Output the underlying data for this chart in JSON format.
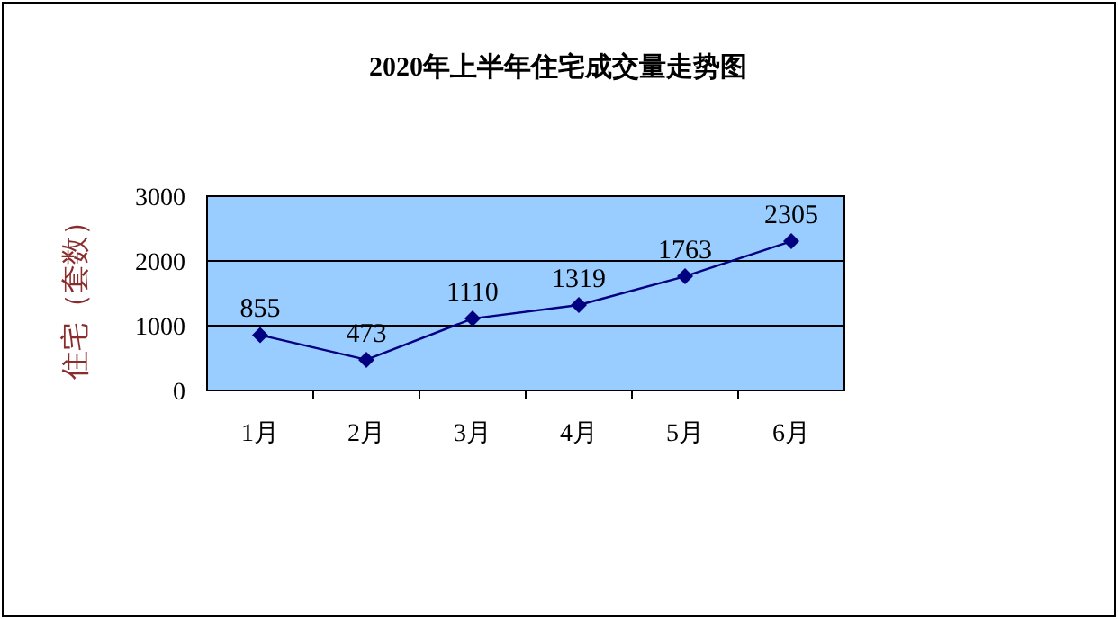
{
  "chart_data": {
    "type": "line",
    "title": "2020年上半年住宅成交量走势图",
    "ylabel": "住宅（套数）",
    "categories": [
      "1月",
      "2月",
      "3月",
      "4月",
      "5月",
      "6月"
    ],
    "values": [
      855,
      473,
      1110,
      1319,
      1763,
      2305
    ],
    "color": "#000080",
    "ylim": [
      0,
      3000
    ],
    "yticks": [
      0,
      1000,
      2000,
      3000
    ],
    "grid": "y",
    "marker": "diamond",
    "data_labels": true
  }
}
